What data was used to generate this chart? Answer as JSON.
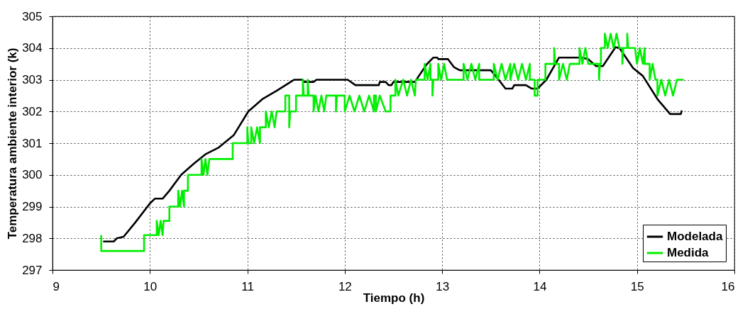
{
  "chart_data": {
    "type": "line",
    "xlabel": "Tiempo (h)",
    "ylabel": "Temperatura ambiente interior (k)",
    "xlim": [
      9,
      16
    ],
    "ylim": [
      297,
      305
    ],
    "xticks": [
      9,
      10,
      11,
      12,
      13,
      14,
      15,
      16
    ],
    "yticks": [
      297,
      298,
      299,
      300,
      301,
      302,
      303,
      304,
      305
    ],
    "grid": true,
    "legend": "bottom right",
    "line_style": "solid",
    "series": [
      {
        "name": "Modelada",
        "color": "#000000",
        "x": [
          9.52,
          9.63,
          9.66,
          9.73,
          9.85,
          10.0,
          10.05,
          10.13,
          10.2,
          10.32,
          10.45,
          10.57,
          10.7,
          10.86,
          11.01,
          11.16,
          11.3,
          11.43,
          11.48,
          11.57,
          11.58,
          11.68,
          11.71,
          12.03,
          12.11,
          12.35,
          12.36,
          12.42,
          12.45,
          12.48,
          12.5,
          12.72,
          12.84,
          12.91,
          12.95,
          12.96,
          13.06,
          13.12,
          13.18,
          13.5,
          13.58,
          13.65,
          13.72,
          13.74,
          13.86,
          13.92,
          13.98,
          14.07,
          14.2,
          14.43,
          14.5,
          14.58,
          14.65,
          14.78,
          14.82,
          14.96,
          15.06,
          15.21,
          15.34,
          15.45,
          15.46
        ],
        "values": [
          297.9,
          297.9,
          298.0,
          298.05,
          298.5,
          299.1,
          299.25,
          299.25,
          299.5,
          300.0,
          300.35,
          300.65,
          300.85,
          301.25,
          302.0,
          302.4,
          302.65,
          302.9,
          303.0,
          303.0,
          302.93,
          302.93,
          303.0,
          303.0,
          302.83,
          302.83,
          302.93,
          302.93,
          302.83,
          302.83,
          302.93,
          302.93,
          303.48,
          303.7,
          303.7,
          303.65,
          303.65,
          303.4,
          303.3,
          303.3,
          303.0,
          302.72,
          302.72,
          302.83,
          302.83,
          302.72,
          302.72,
          303.0,
          303.7,
          303.7,
          303.65,
          303.43,
          303.43,
          304.03,
          304.0,
          303.37,
          303.12,
          302.39,
          301.92,
          301.92,
          302.03
        ]
      },
      {
        "name": "Medida",
        "color": "#00ee00",
        "x": [
          9.5,
          9.5,
          9.94,
          9.94,
          10.07,
          10.07,
          10.09,
          10.11,
          10.13,
          10.14,
          10.2,
          10.2,
          10.29,
          10.29,
          10.31,
          10.33,
          10.35,
          10.35,
          10.39,
          10.39,
          10.53,
          10.53,
          10.55,
          10.57,
          10.59,
          10.61,
          10.85,
          10.85,
          11.0,
          11.0,
          11.01,
          11.04,
          11.04,
          11.07,
          11.1,
          11.13,
          11.13,
          11.19,
          11.19,
          11.22,
          11.25,
          11.28,
          11.3,
          11.39,
          11.39,
          11.43,
          11.43,
          11.44,
          11.5,
          11.5,
          11.57,
          11.57,
          11.58,
          11.62,
          11.62,
          11.63,
          11.68,
          11.68,
          11.7,
          11.73,
          11.76,
          11.79,
          11.81,
          11.91,
          11.91,
          11.92,
          12.0,
          12.0,
          12.05,
          12.1,
          12.15,
          12.2,
          12.25,
          12.3,
          12.3,
          12.32,
          12.32,
          12.36,
          12.42,
          12.47,
          12.47,
          12.52,
          12.52,
          12.55,
          12.6,
          12.64,
          12.68,
          12.72,
          12.73,
          12.82,
          12.82,
          12.85,
          12.88,
          12.88,
          12.9,
          12.9,
          12.91,
          12.96,
          12.96,
          12.99,
          13.02,
          13.05,
          13.22,
          13.22,
          13.26,
          13.3,
          13.34,
          13.38,
          13.38,
          13.53,
          13.53,
          13.57,
          13.61,
          13.65,
          13.7,
          13.7,
          13.74,
          13.78,
          13.82,
          13.86,
          13.9,
          13.9,
          13.95,
          13.95,
          13.98,
          13.98,
          14.06,
          14.06,
          14.15,
          14.15,
          14.16,
          14.2,
          14.2,
          14.24,
          14.28,
          14.31,
          14.41,
          14.41,
          14.44,
          14.47,
          14.5,
          14.61,
          14.61,
          14.62,
          14.63,
          14.63,
          14.67,
          14.67,
          14.7,
          14.73,
          14.76,
          14.79,
          14.82,
          14.85,
          14.85,
          14.86,
          14.9,
          14.9,
          14.91,
          14.98,
          15.0,
          15.03,
          15.06,
          15.08,
          15.08,
          15.13,
          15.13,
          15.16,
          15.19,
          15.21,
          15.21,
          15.25,
          15.29,
          15.33,
          15.37,
          15.41,
          15.48
        ],
        "values": [
          298.1,
          297.6,
          297.6,
          298.1,
          298.1,
          298.55,
          298.1,
          298.55,
          298.1,
          298.55,
          298.55,
          299.0,
          299.0,
          299.5,
          299.0,
          299.5,
          299.0,
          299.5,
          299.5,
          300.0,
          300.0,
          300.5,
          300.0,
          300.5,
          300.0,
          300.5,
          300.5,
          301.0,
          301.0,
          301.5,
          301.0,
          301.0,
          301.5,
          301.0,
          301.5,
          301.0,
          301.5,
          301.5,
          302.0,
          301.5,
          302.0,
          301.5,
          302.0,
          302.0,
          302.5,
          302.5,
          301.5,
          302.0,
          302.0,
          302.5,
          302.5,
          303.0,
          302.5,
          302.5,
          303.0,
          302.5,
          302.5,
          302.0,
          302.5,
          302.0,
          302.5,
          302.0,
          302.5,
          302.5,
          302.0,
          302.5,
          302.5,
          302.0,
          302.5,
          302.0,
          302.5,
          302.0,
          302.5,
          302.0,
          302.5,
          302.5,
          302.0,
          302.5,
          302.0,
          302.0,
          302.5,
          302.5,
          303.0,
          302.5,
          303.0,
          302.5,
          303.0,
          302.5,
          303.0,
          303.0,
          303.5,
          303.0,
          303.5,
          303.0,
          303.0,
          302.5,
          303.0,
          303.0,
          303.5,
          303.0,
          303.5,
          303.0,
          303.0,
          303.5,
          303.0,
          303.5,
          303.0,
          303.5,
          303.0,
          303.0,
          303.5,
          303.0,
          303.5,
          303.0,
          303.5,
          303.0,
          303.5,
          303.0,
          303.5,
          303.0,
          303.5,
          303.0,
          303.0,
          302.5,
          302.5,
          303.0,
          303.0,
          303.5,
          303.5,
          304.0,
          303.5,
          303.5,
          303.0,
          303.5,
          303.0,
          303.5,
          303.5,
          304.0,
          303.5,
          304.0,
          303.5,
          303.5,
          303.0,
          303.5,
          303.5,
          304.0,
          304.0,
          304.45,
          304.0,
          304.45,
          304.0,
          304.45,
          304.0,
          304.0,
          303.5,
          304.0,
          304.0,
          304.45,
          304.0,
          304.0,
          303.5,
          304.0,
          303.5,
          304.0,
          303.5,
          303.5,
          303.0,
          303.5,
          303.0,
          303.0,
          302.5,
          303.0,
          302.5,
          303.0,
          302.5,
          303.0,
          303.0
        ]
      }
    ]
  }
}
